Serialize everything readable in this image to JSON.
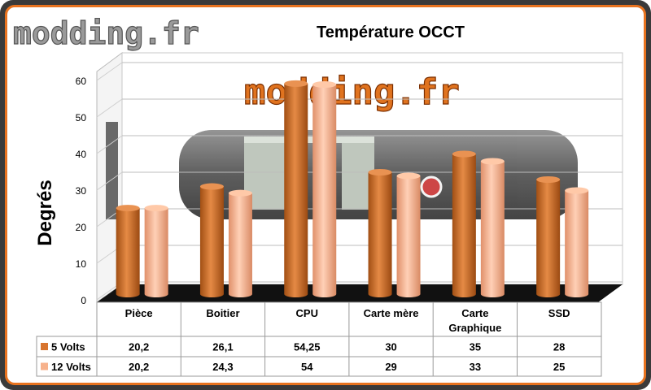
{
  "watermark_text": "modding.fr",
  "chart_data": {
    "type": "bar",
    "title": "Température OCCT",
    "ylabel": "Degrés",
    "ylim": [
      0,
      60
    ],
    "yticks": [
      0,
      10,
      20,
      30,
      40,
      50,
      60
    ],
    "grid": true,
    "categories": [
      "Pièce",
      "Boitier",
      "CPU",
      "Carte mère",
      "Carte Graphique",
      "SSD"
    ],
    "series": [
      {
        "name": "5 Volts",
        "color": "#d8742e",
        "labels": [
          "20,2",
          "26,1",
          "54,25",
          "30",
          "35",
          "28"
        ],
        "values": [
          20.2,
          26.1,
          54.25,
          30,
          35,
          28
        ]
      },
      {
        "name": "12 Volts",
        "color": "#f7b28c",
        "labels": [
          "20,2",
          "24,3",
          "54",
          "29",
          "33",
          "25"
        ],
        "values": [
          20.2,
          24.3,
          54,
          29,
          33,
          25
        ]
      }
    ]
  },
  "colors": {
    "frame_border": "#e8731f",
    "frame_bg": "#3a3a3a",
    "floor": "#111111"
  }
}
